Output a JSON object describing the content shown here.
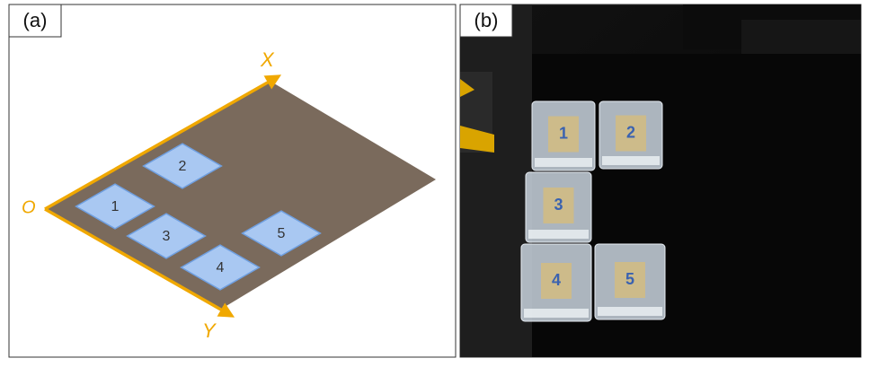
{
  "panel_a": {
    "label": "(a)",
    "axis_x": "X",
    "axis_y": "Y",
    "origin": "O",
    "squares": [
      "1",
      "2",
      "3",
      "4",
      "5"
    ]
  },
  "panel_b": {
    "label": "(b)",
    "samples": [
      "1",
      "2",
      "3",
      "4",
      "5"
    ]
  }
}
